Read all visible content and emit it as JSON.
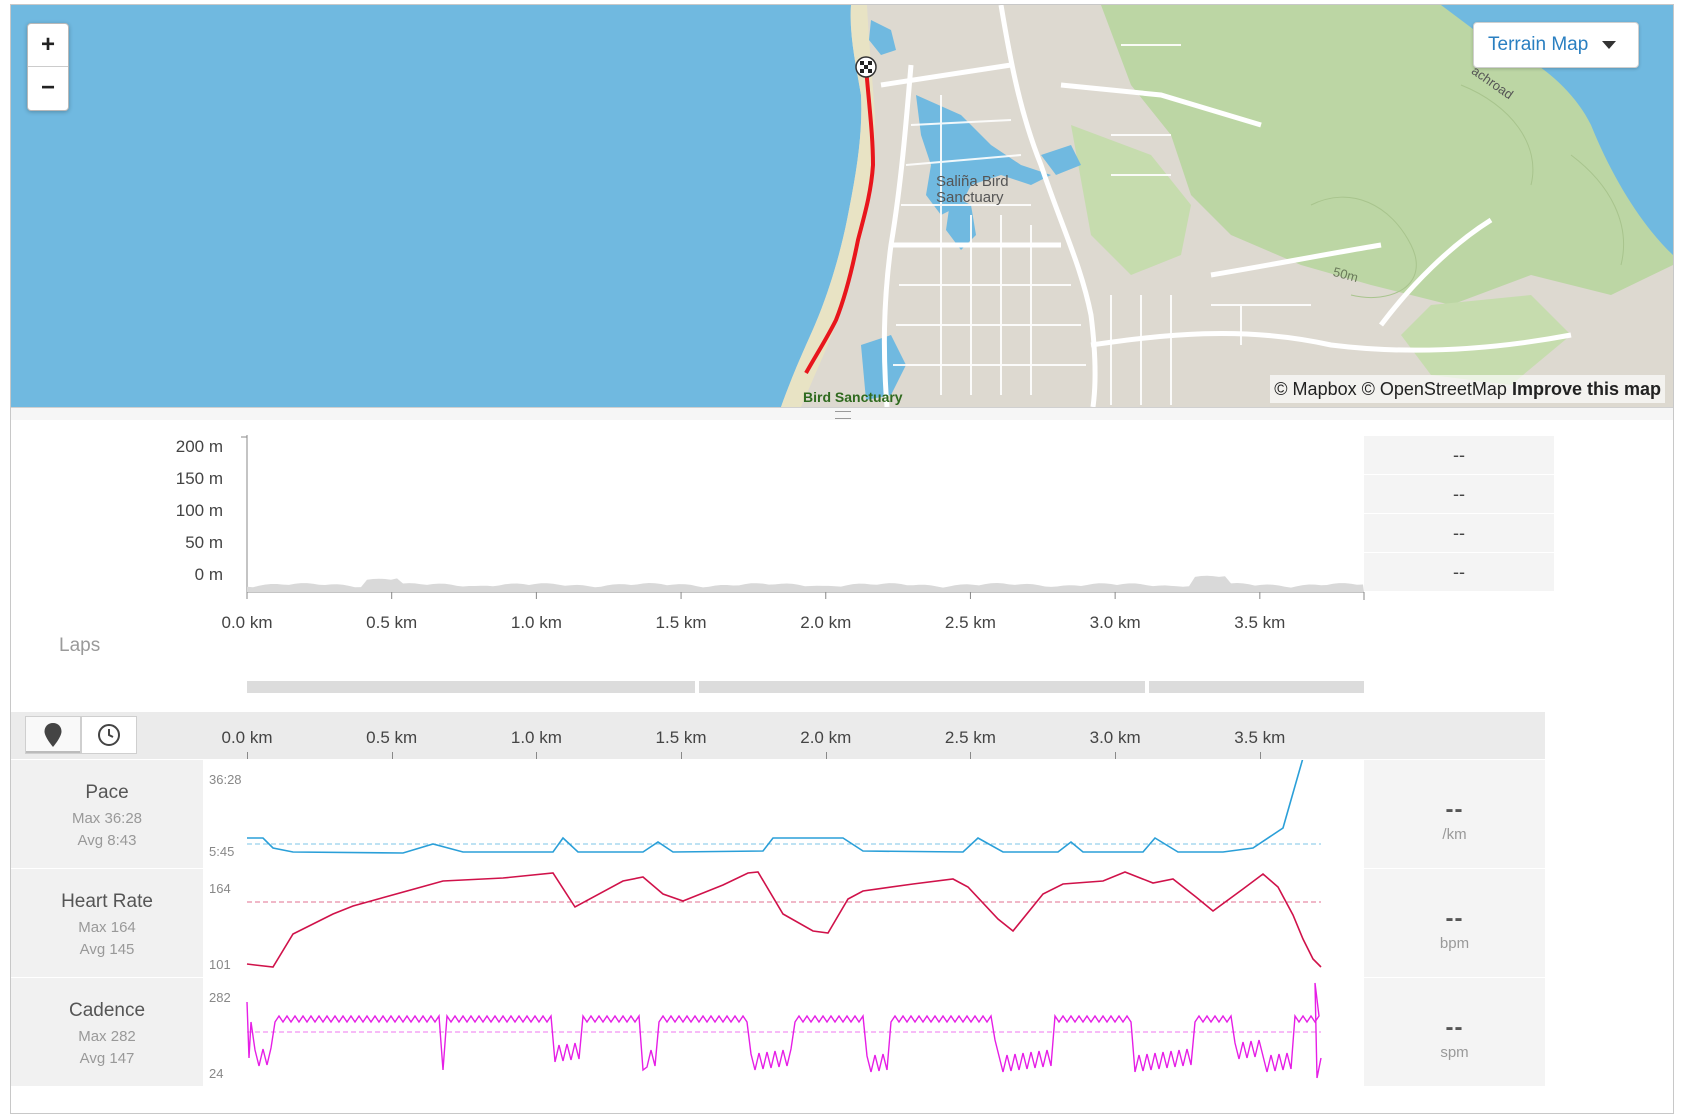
{
  "map": {
    "zoom_in_label": "+",
    "zoom_out_label": "−",
    "map_type_label": "Terrain Map",
    "attribution_prefix": "© Mapbox © OpenStreetMap",
    "attribution_link": "Improve this map",
    "place_labels": [
      "Saliña Bird",
      "Sanctuary",
      "Bird Sanctuary",
      "50m",
      "achroad"
    ],
    "colors": {
      "water": "#70b9e0",
      "land": "#ddd9d0",
      "park": "#bcd6a4",
      "route": "#e8161c"
    }
  },
  "elevation": {
    "y_ticks": [
      "200 m",
      "150 m",
      "100 m",
      "50 m",
      "0 m"
    ],
    "x_ticks": [
      "0.0 km",
      "0.5 km",
      "1.0 km",
      "1.5 km",
      "2.0 km",
      "2.5 km",
      "3.0 km",
      "3.5 km"
    ],
    "stats": [
      "--",
      "--",
      "--",
      "--"
    ]
  },
  "laps": {
    "label": "Laps",
    "count": 3
  },
  "x_axis": {
    "ticks": [
      "0.0 km",
      "0.5 km",
      "1.0 km",
      "1.5 km",
      "2.0 km",
      "2.5 km",
      "3.0 km",
      "3.5 km"
    ],
    "toggle_distance_icon": "map-pin-icon",
    "toggle_time_icon": "clock-icon"
  },
  "streams": [
    {
      "name": "Pace",
      "max": "Max 36:28",
      "avg": "Avg 8:43",
      "y_top": "36:28",
      "y_bottom": "5:45",
      "value": "--",
      "unit": "/km",
      "color": "#2a9fd8"
    },
    {
      "name": "Heart Rate",
      "max": "Max 164",
      "avg": "Avg 145",
      "y_top": "164",
      "y_bottom": "101",
      "value": "--",
      "unit": "bpm",
      "color": "#d0124a"
    },
    {
      "name": "Cadence",
      "max": "Max 282",
      "avg": "Avg 147",
      "y_top": "282",
      "y_bottom": "24",
      "value": "--",
      "unit": "spm",
      "color": "#e61ee6"
    }
  ]
}
